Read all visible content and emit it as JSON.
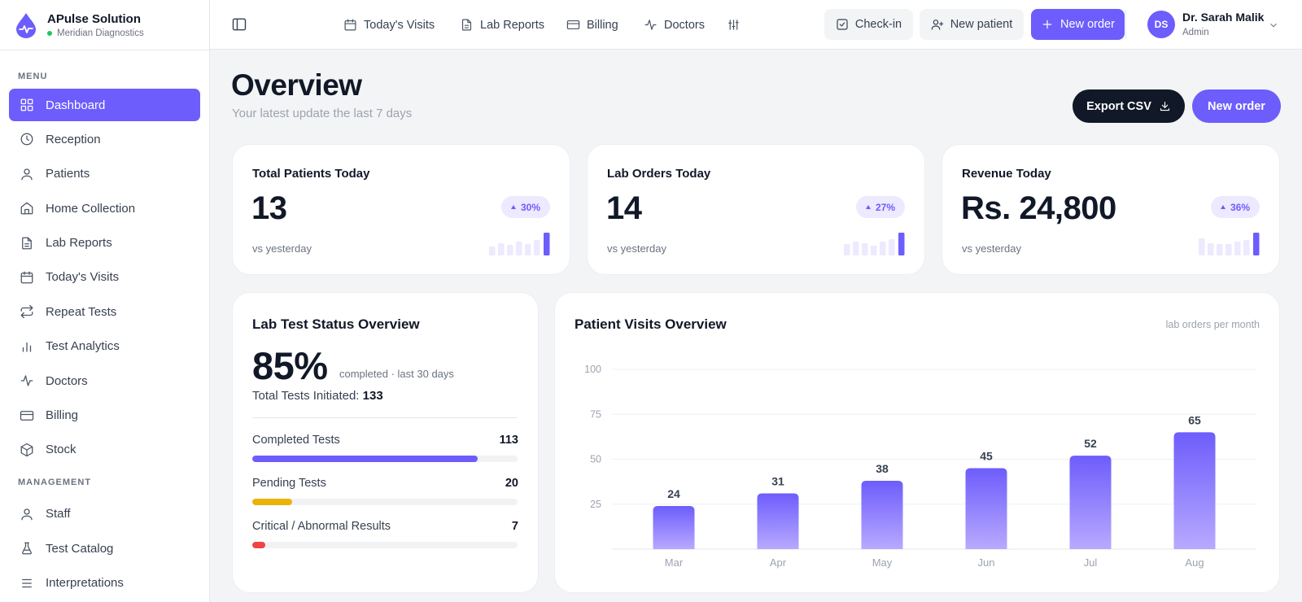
{
  "brand": {
    "name": "APulse Solution",
    "subtitle": "Meridian Diagnostics"
  },
  "sidebar": {
    "menu_label": "MENU",
    "items": [
      {
        "label": "Dashboard",
        "icon": "grid-icon",
        "active": true
      },
      {
        "label": "Reception",
        "icon": "clock-icon"
      },
      {
        "label": "Patients",
        "icon": "user-icon"
      },
      {
        "label": "Home Collection",
        "icon": "home-icon"
      },
      {
        "label": "Lab Reports",
        "icon": "file-icon"
      },
      {
        "label": "Today's Visits",
        "icon": "calendar-icon"
      },
      {
        "label": "Repeat Tests",
        "icon": "repeat-icon"
      },
      {
        "label": "Test Analytics",
        "icon": "bar-chart-icon"
      },
      {
        "label": "Doctors",
        "icon": "activity-icon"
      },
      {
        "label": "Billing",
        "icon": "credit-card-icon"
      },
      {
        "label": "Stock",
        "icon": "box-icon"
      }
    ],
    "management_label": "MANAGEMENT",
    "management_items": [
      {
        "label": "Staff",
        "icon": "user-icon"
      },
      {
        "label": "Test Catalog",
        "icon": "flask-icon"
      },
      {
        "label": "Interpretations",
        "icon": "list-icon"
      }
    ]
  },
  "topbar": {
    "nav": [
      {
        "label": "Today's Visits",
        "icon": "calendar-icon"
      },
      {
        "label": "Lab Reports",
        "icon": "file-icon"
      },
      {
        "label": "Billing",
        "icon": "credit-card-icon"
      },
      {
        "label": "Doctors",
        "icon": "activity-icon"
      }
    ],
    "checkin_label": "Check-in",
    "new_patient_label": "New patient",
    "new_order_label": "New order",
    "user": {
      "initials": "DS",
      "name": "Dr. Sarah Malik",
      "role": "Admin"
    }
  },
  "overview": {
    "title": "Overview",
    "subtitle": "Your latest update the last 7 days",
    "export_label": "Export CSV",
    "new_order_label": "New order"
  },
  "stats": [
    {
      "title": "Total Patients Today",
      "value": "13",
      "change": "30%",
      "footer": "vs yesterday"
    },
    {
      "title": "Lab Orders Today",
      "value": "14",
      "change": "27%",
      "footer": "vs yesterday"
    },
    {
      "title": "Revenue Today",
      "value": "Rs. 24,800",
      "change": "36%",
      "footer": "vs yesterday"
    }
  ],
  "lab_status": {
    "title": "Lab Test Status Overview",
    "percent": "85%",
    "percent_note": "completed · last 30 days",
    "total_label": "Total Tests Initiated:",
    "total_value": "133",
    "rows": [
      {
        "label": "Completed Tests",
        "value": "113",
        "fraction": 0.85,
        "color": "#6d5dfc"
      },
      {
        "label": "Pending Tests",
        "value": "20",
        "fraction": 0.15,
        "color": "#eab308"
      },
      {
        "label": "Critical / Abnormal Results",
        "value": "7",
        "fraction": 0.05,
        "color": "#ef4444"
      }
    ]
  },
  "visits": {
    "title": "Patient Visits Overview",
    "note": "lab orders per month"
  },
  "chart_data": {
    "type": "bar",
    "categories": [
      "Mar",
      "Apr",
      "May",
      "Jun",
      "Jul",
      "Aug"
    ],
    "values": [
      24,
      31,
      38,
      45,
      52,
      65
    ],
    "yticks": [
      25,
      50,
      75,
      100
    ],
    "ylim": [
      0,
      100
    ],
    "grid": true,
    "color": "#6d5dfc"
  },
  "colors": {
    "accent": "#6d5dfc",
    "dark": "#111827",
    "pending": "#eab308",
    "critical": "#ef4444"
  }
}
